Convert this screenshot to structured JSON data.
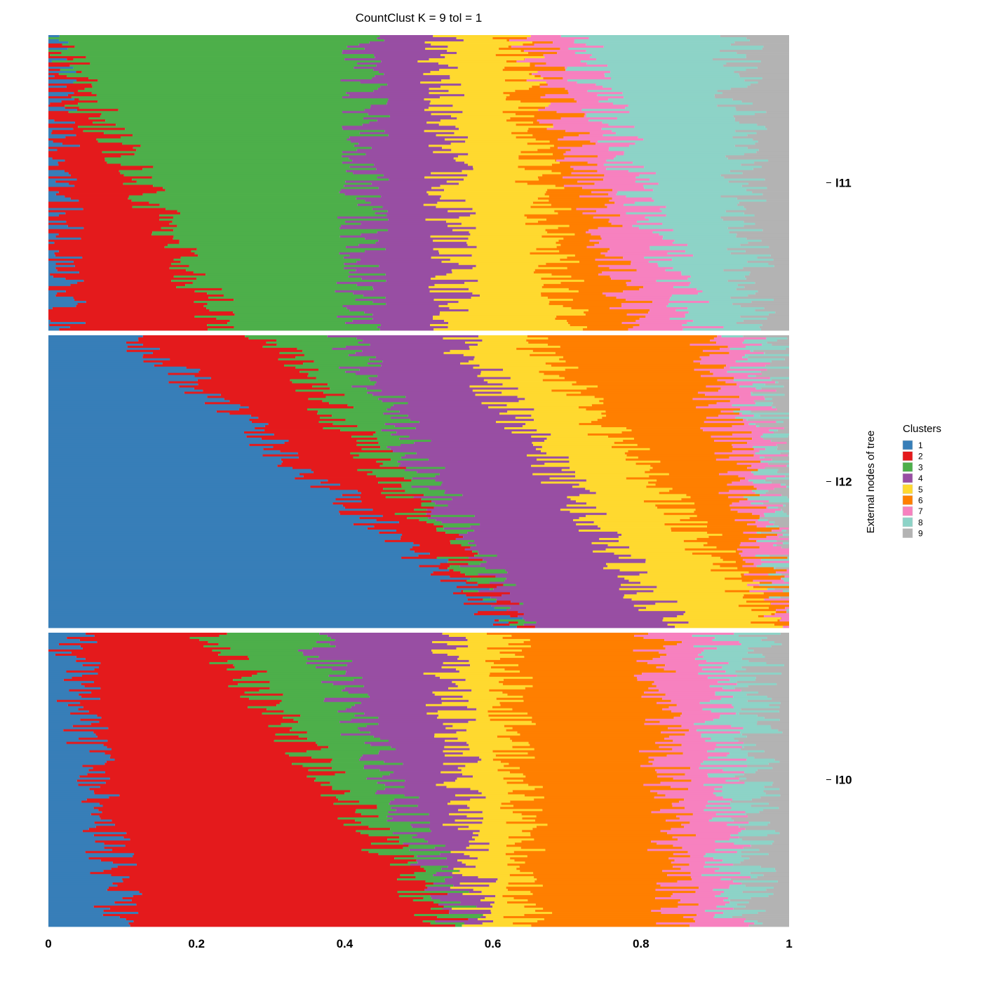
{
  "chart_data": {
    "type": "bar",
    "orientation": "horizontal-stacked-proportion",
    "title": "CountClust K =  9 tol =  1",
    "ylabel": "External nodes of tree",
    "xlim": [
      0,
      1
    ],
    "x_ticks": [
      "0",
      "0.2",
      "0.4",
      "0.6",
      "0.8",
      "1"
    ],
    "grid": false,
    "legend": {
      "title": "Clusters",
      "placement": "right",
      "entries": [
        {
          "label": "1",
          "color": "#377EB8"
        },
        {
          "label": "2",
          "color": "#E41A1C"
        },
        {
          "label": "3",
          "color": "#4DAF4A"
        },
        {
          "label": "4",
          "color": "#984EA3"
        },
        {
          "label": "5",
          "color": "#FFD92F"
        },
        {
          "label": "6",
          "color": "#FF7F00"
        },
        {
          "label": "7",
          "color": "#F781BF"
        },
        {
          "label": "8",
          "color": "#8DD3C7"
        },
        {
          "label": "9",
          "color": "#B3B3B3"
        }
      ]
    },
    "groups": [
      {
        "name": "l11",
        "n_samples": 140,
        "mean_profile_note": "approximate cumulative cluster boundaries (top, bottom) read from panel",
        "boundaries_top": [
          0.0,
          0.0,
          0.43,
          0.53,
          0.63,
          0.65,
          0.71,
          0.93,
          1.0
        ],
        "boundaries_bottom": [
          0.02,
          0.24,
          0.42,
          0.55,
          0.7,
          0.8,
          0.88,
          0.95,
          1.0
        ]
      },
      {
        "name": "l12",
        "n_samples": 140,
        "mean_profile_note": "approximate cumulative cluster boundaries (top, bottom) read from panel",
        "boundaries_top": [
          0.11,
          0.3,
          0.4,
          0.55,
          0.65,
          0.88,
          0.94,
          0.97,
          1.0
        ],
        "boundaries_bottom": [
          0.63,
          0.63,
          0.63,
          0.84,
          0.98,
          0.99,
          1.0,
          1.0,
          1.0
        ]
      },
      {
        "name": "l10",
        "n_samples": 140,
        "mean_profile_note": "approximate cumulative cluster boundaries (top, bottom) read from panel",
        "boundaries_top": [
          0.03,
          0.22,
          0.36,
          0.53,
          0.62,
          0.82,
          0.9,
          0.96,
          1.0
        ],
        "boundaries_bottom": [
          0.1,
          0.54,
          0.56,
          0.58,
          0.65,
          0.85,
          0.92,
          0.95,
          1.0
        ]
      }
    ]
  }
}
